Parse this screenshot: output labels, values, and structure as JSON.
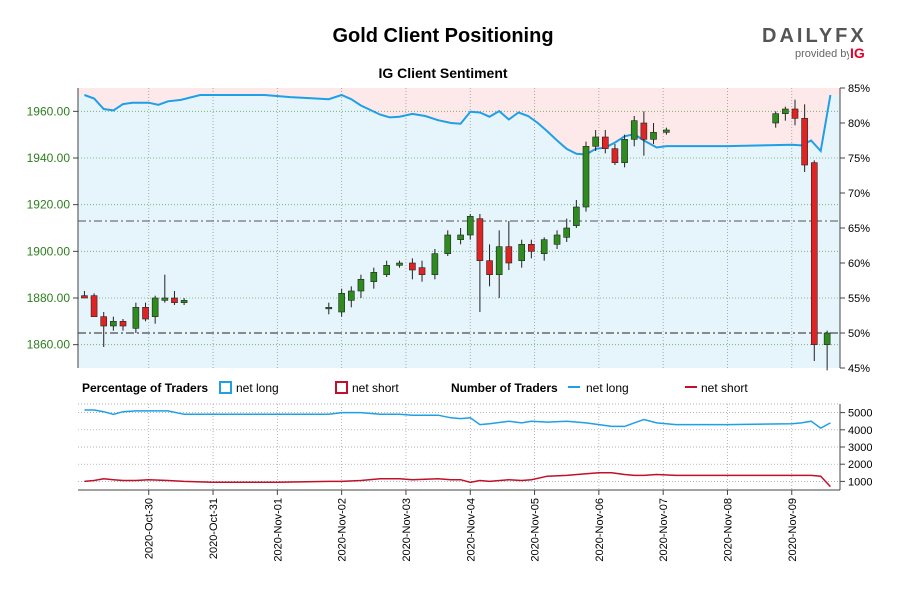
{
  "page": {
    "title": "Gold Client Positioning",
    "subtitle": "IG Client Sentiment",
    "brand": {
      "logo_text": "DAILYFX",
      "provided_by": "provided by",
      "provider": "IG"
    }
  },
  "legend": {
    "percentage_heading": "Percentage of Traders",
    "pct_long_label": "net long",
    "pct_short_label": "net short",
    "number_heading": "Number of Traders",
    "num_long_label": "net long",
    "num_short_label": "net short"
  },
  "colors": {
    "bull": "#2e8b1e",
    "bear": "#e02424",
    "long_line": "#1f9fe6",
    "short_line": "#c0102a",
    "long_fill": "#e6f4fc",
    "short_fill": "#fde9ea"
  },
  "chart_data": [
    {
      "type": "candlestick+line",
      "title": "IG Client Sentiment",
      "y_axis_left": {
        "ticks": [
          "1860.00",
          "1880.00",
          "1900.00",
          "1920.00",
          "1940.00",
          "1960.00"
        ],
        "range": [
          1850,
          1970
        ]
      },
      "y_axis_right": {
        "ticks": [
          "45%",
          "50%",
          "55%",
          "60%",
          "65%",
          "70%",
          "75%",
          "80%",
          "85%"
        ],
        "range": [
          45,
          85
        ]
      },
      "reference_lines": [
        1913,
        1865
      ],
      "candles": [
        {
          "x": 0.0,
          "o": 1881,
          "h": 1883,
          "l": 1880,
          "c": 1880
        },
        {
          "x": 0.15,
          "o": 1881,
          "h": 1882,
          "l": 1872,
          "c": 1872
        },
        {
          "x": 0.3,
          "o": 1872,
          "h": 1874,
          "l": 1859,
          "c": 1868
        },
        {
          "x": 0.45,
          "o": 1868,
          "h": 1872,
          "l": 1866,
          "c": 1870
        },
        {
          "x": 0.6,
          "o": 1870,
          "h": 1871,
          "l": 1866,
          "c": 1868
        },
        {
          "x": 0.8,
          "o": 1867,
          "h": 1878,
          "l": 1865,
          "c": 1876
        },
        {
          "x": 0.95,
          "o": 1876,
          "h": 1878,
          "l": 1870,
          "c": 1871
        },
        {
          "x": 1.1,
          "o": 1872,
          "h": 1881,
          "l": 1869,
          "c": 1880
        },
        {
          "x": 1.25,
          "o": 1879,
          "h": 1890,
          "l": 1878,
          "c": 1880
        },
        {
          "x": 1.4,
          "o": 1880,
          "h": 1883,
          "l": 1877,
          "c": 1878
        },
        {
          "x": 1.55,
          "o": 1878,
          "h": 1880,
          "l": 1877,
          "c": 1879
        },
        {
          "x": 3.8,
          "o": 1876,
          "h": 1878,
          "l": 1873,
          "c": 1876
        },
        {
          "x": 4.0,
          "o": 1874,
          "h": 1884,
          "l": 1872,
          "c": 1882
        },
        {
          "x": 4.15,
          "o": 1879,
          "h": 1885,
          "l": 1876,
          "c": 1883
        },
        {
          "x": 4.3,
          "o": 1883,
          "h": 1890,
          "l": 1880,
          "c": 1888
        },
        {
          "x": 4.5,
          "o": 1887,
          "h": 1893,
          "l": 1884,
          "c": 1891
        },
        {
          "x": 4.7,
          "o": 1890,
          "h": 1896,
          "l": 1889,
          "c": 1894
        },
        {
          "x": 4.9,
          "o": 1894,
          "h": 1896,
          "l": 1893,
          "c": 1895
        },
        {
          "x": 5.1,
          "o": 1895,
          "h": 1897,
          "l": 1888,
          "c": 1892
        },
        {
          "x": 5.25,
          "o": 1893,
          "h": 1896,
          "l": 1887,
          "c": 1890
        },
        {
          "x": 5.45,
          "o": 1890,
          "h": 1901,
          "l": 1888,
          "c": 1899
        },
        {
          "x": 5.65,
          "o": 1899,
          "h": 1909,
          "l": 1898,
          "c": 1907
        },
        {
          "x": 5.85,
          "o": 1905,
          "h": 1910,
          "l": 1903,
          "c": 1907
        },
        {
          "x": 6.0,
          "o": 1907,
          "h": 1916,
          "l": 1905,
          "c": 1915
        },
        {
          "x": 6.15,
          "o": 1914,
          "h": 1916,
          "l": 1874,
          "c": 1896
        },
        {
          "x": 6.3,
          "o": 1896,
          "h": 1903,
          "l": 1885,
          "c": 1890
        },
        {
          "x": 6.45,
          "o": 1890,
          "h": 1909,
          "l": 1880,
          "c": 1902
        },
        {
          "x": 6.6,
          "o": 1902,
          "h": 1913,
          "l": 1892,
          "c": 1895
        },
        {
          "x": 6.8,
          "o": 1896,
          "h": 1905,
          "l": 1893,
          "c": 1903
        },
        {
          "x": 6.95,
          "o": 1903,
          "h": 1905,
          "l": 1897,
          "c": 1900
        },
        {
          "x": 7.15,
          "o": 1899,
          "h": 1906,
          "l": 1896,
          "c": 1905
        },
        {
          "x": 7.35,
          "o": 1903,
          "h": 1909,
          "l": 1901,
          "c": 1907
        },
        {
          "x": 7.5,
          "o": 1906,
          "h": 1914,
          "l": 1904,
          "c": 1910
        },
        {
          "x": 7.65,
          "o": 1911,
          "h": 1922,
          "l": 1910,
          "c": 1919
        },
        {
          "x": 7.8,
          "o": 1919,
          "h": 1947,
          "l": 1917,
          "c": 1945
        },
        {
          "x": 7.95,
          "o": 1945,
          "h": 1952,
          "l": 1943,
          "c": 1949
        },
        {
          "x": 8.1,
          "o": 1949,
          "h": 1952,
          "l": 1942,
          "c": 1944
        },
        {
          "x": 8.25,
          "o": 1944,
          "h": 1946,
          "l": 1937,
          "c": 1938
        },
        {
          "x": 8.4,
          "o": 1938,
          "h": 1950,
          "l": 1936,
          "c": 1948
        },
        {
          "x": 8.55,
          "o": 1948,
          "h": 1958,
          "l": 1945,
          "c": 1956
        },
        {
          "x": 8.7,
          "o": 1955,
          "h": 1960,
          "l": 1941,
          "c": 1948
        },
        {
          "x": 8.85,
          "o": 1948,
          "h": 1955,
          "l": 1946,
          "c": 1951
        },
        {
          "x": 9.05,
          "o": 1951,
          "h": 1953,
          "l": 1950,
          "c": 1952
        },
        {
          "x": 10.75,
          "o": 1955,
          "h": 1960,
          "l": 1953,
          "c": 1959
        },
        {
          "x": 10.9,
          "o": 1959,
          "h": 1962,
          "l": 1956,
          "c": 1961
        },
        {
          "x": 11.05,
          "o": 1961,
          "h": 1965,
          "l": 1954,
          "c": 1957
        },
        {
          "x": 11.2,
          "o": 1957,
          "h": 1963,
          "l": 1934,
          "c": 1937
        },
        {
          "x": 11.35,
          "o": 1938,
          "h": 1939,
          "l": 1853,
          "c": 1860
        },
        {
          "x": 11.55,
          "o": 1860,
          "h": 1866,
          "l": 1849,
          "c": 1865
        }
      ],
      "sentiment_pct_long": {
        "x": [
          0,
          0.15,
          0.3,
          0.45,
          0.6,
          0.75,
          1.0,
          1.15,
          1.3,
          1.5,
          1.8,
          2.0,
          2.3,
          2.8,
          3.2,
          3.6,
          3.8,
          4.0,
          4.15,
          4.3,
          4.6,
          4.75,
          4.9,
          5.1,
          5.3,
          5.5,
          5.7,
          5.85,
          6.0,
          6.15,
          6.3,
          6.45,
          6.6,
          6.75,
          6.9,
          7.05,
          7.2,
          7.35,
          7.5,
          7.65,
          7.8,
          7.95,
          8.1,
          8.25,
          8.4,
          8.55,
          8.7,
          8.9,
          9.05,
          10.0,
          11.0,
          11.15,
          11.3,
          11.45,
          11.6
        ],
        "values": [
          84,
          83.5,
          82,
          81.8,
          82.7,
          82.9,
          82.9,
          82.6,
          83.1,
          83.3,
          84,
          84,
          84,
          84,
          83.7,
          83.5,
          83.4,
          84,
          83.4,
          82.5,
          81.2,
          80.8,
          80.9,
          81.3,
          81,
          80.4,
          80,
          79.9,
          81.6,
          81.5,
          80.9,
          81.7,
          80.5,
          81.5,
          81,
          80,
          78.8,
          77.5,
          76.3,
          75.6,
          75.5,
          76.3,
          76.5,
          77.2,
          78.1,
          78.4,
          77.5,
          76.5,
          76.7,
          76.7,
          76.9,
          76.8,
          77.5,
          76,
          84
        ]
      },
      "traders_net_long": {
        "x": [
          0,
          0.15,
          0.3,
          0.45,
          0.6,
          0.8,
          1.0,
          1.3,
          1.55,
          2.0,
          3.0,
          3.8,
          4.0,
          4.3,
          4.6,
          4.9,
          5.1,
          5.5,
          5.7,
          5.85,
          6.0,
          6.15,
          6.3,
          6.6,
          6.8,
          6.95,
          7.2,
          7.5,
          7.8,
          8.0,
          8.2,
          8.4,
          8.55,
          8.7,
          8.9,
          9.2,
          10.0,
          11.0,
          11.15,
          11.3,
          11.45,
          11.6
        ],
        "values": [
          5150,
          5150,
          5050,
          4900,
          5050,
          5100,
          5100,
          5100,
          4900,
          4900,
          4900,
          4900,
          5000,
          5000,
          4900,
          4900,
          4850,
          4850,
          4700,
          4650,
          4700,
          4300,
          4350,
          4500,
          4400,
          4500,
          4450,
          4500,
          4400,
          4300,
          4200,
          4200,
          4400,
          4600,
          4400,
          4300,
          4300,
          4350,
          4400,
          4500,
          4100,
          4400
        ]
      },
      "traders_net_short": {
        "x": [
          0,
          0.15,
          0.3,
          0.45,
          0.6,
          0.8,
          1.0,
          1.3,
          1.55,
          2.0,
          3.0,
          3.8,
          4.0,
          4.3,
          4.6,
          4.9,
          5.1,
          5.5,
          5.7,
          5.85,
          6.0,
          6.15,
          6.3,
          6.6,
          6.8,
          6.95,
          7.2,
          7.5,
          7.8,
          8.0,
          8.2,
          8.4,
          8.55,
          8.7,
          8.9,
          9.2,
          10.0,
          11.0,
          11.15,
          11.3,
          11.45,
          11.6
        ],
        "values": [
          1000,
          1050,
          1150,
          1100,
          1050,
          1050,
          1100,
          1050,
          1000,
          950,
          950,
          1000,
          1000,
          1050,
          1150,
          1150,
          1100,
          1150,
          1100,
          1100,
          950,
          1050,
          1000,
          1100,
          1050,
          1100,
          1300,
          1350,
          1450,
          1500,
          1500,
          1400,
          1350,
          1350,
          1400,
          1350,
          1350,
          1350,
          1350,
          1350,
          1300,
          700
        ]
      },
      "y_axis_traders": {
        "ticks": [
          "1000",
          "2000",
          "3000",
          "4000",
          "5000"
        ],
        "range": [
          500,
          5500
        ]
      },
      "x_axis": {
        "ticks": [
          "2020-Oct-30",
          "2020-Oct-31",
          "2020-Nov-01",
          "2020-Nov-02",
          "2020-Nov-03",
          "2020-Nov-04",
          "2020-Nov-05",
          "2020-Nov-06",
          "2020-Nov-07",
          "2020-Nov-08",
          "2020-Nov-09"
        ],
        "tick_x": [
          1,
          2,
          3,
          4,
          5,
          6,
          7,
          8,
          9,
          10,
          11
        ],
        "range": [
          -0.1,
          11.75
        ]
      },
      "grid": true
    }
  ]
}
